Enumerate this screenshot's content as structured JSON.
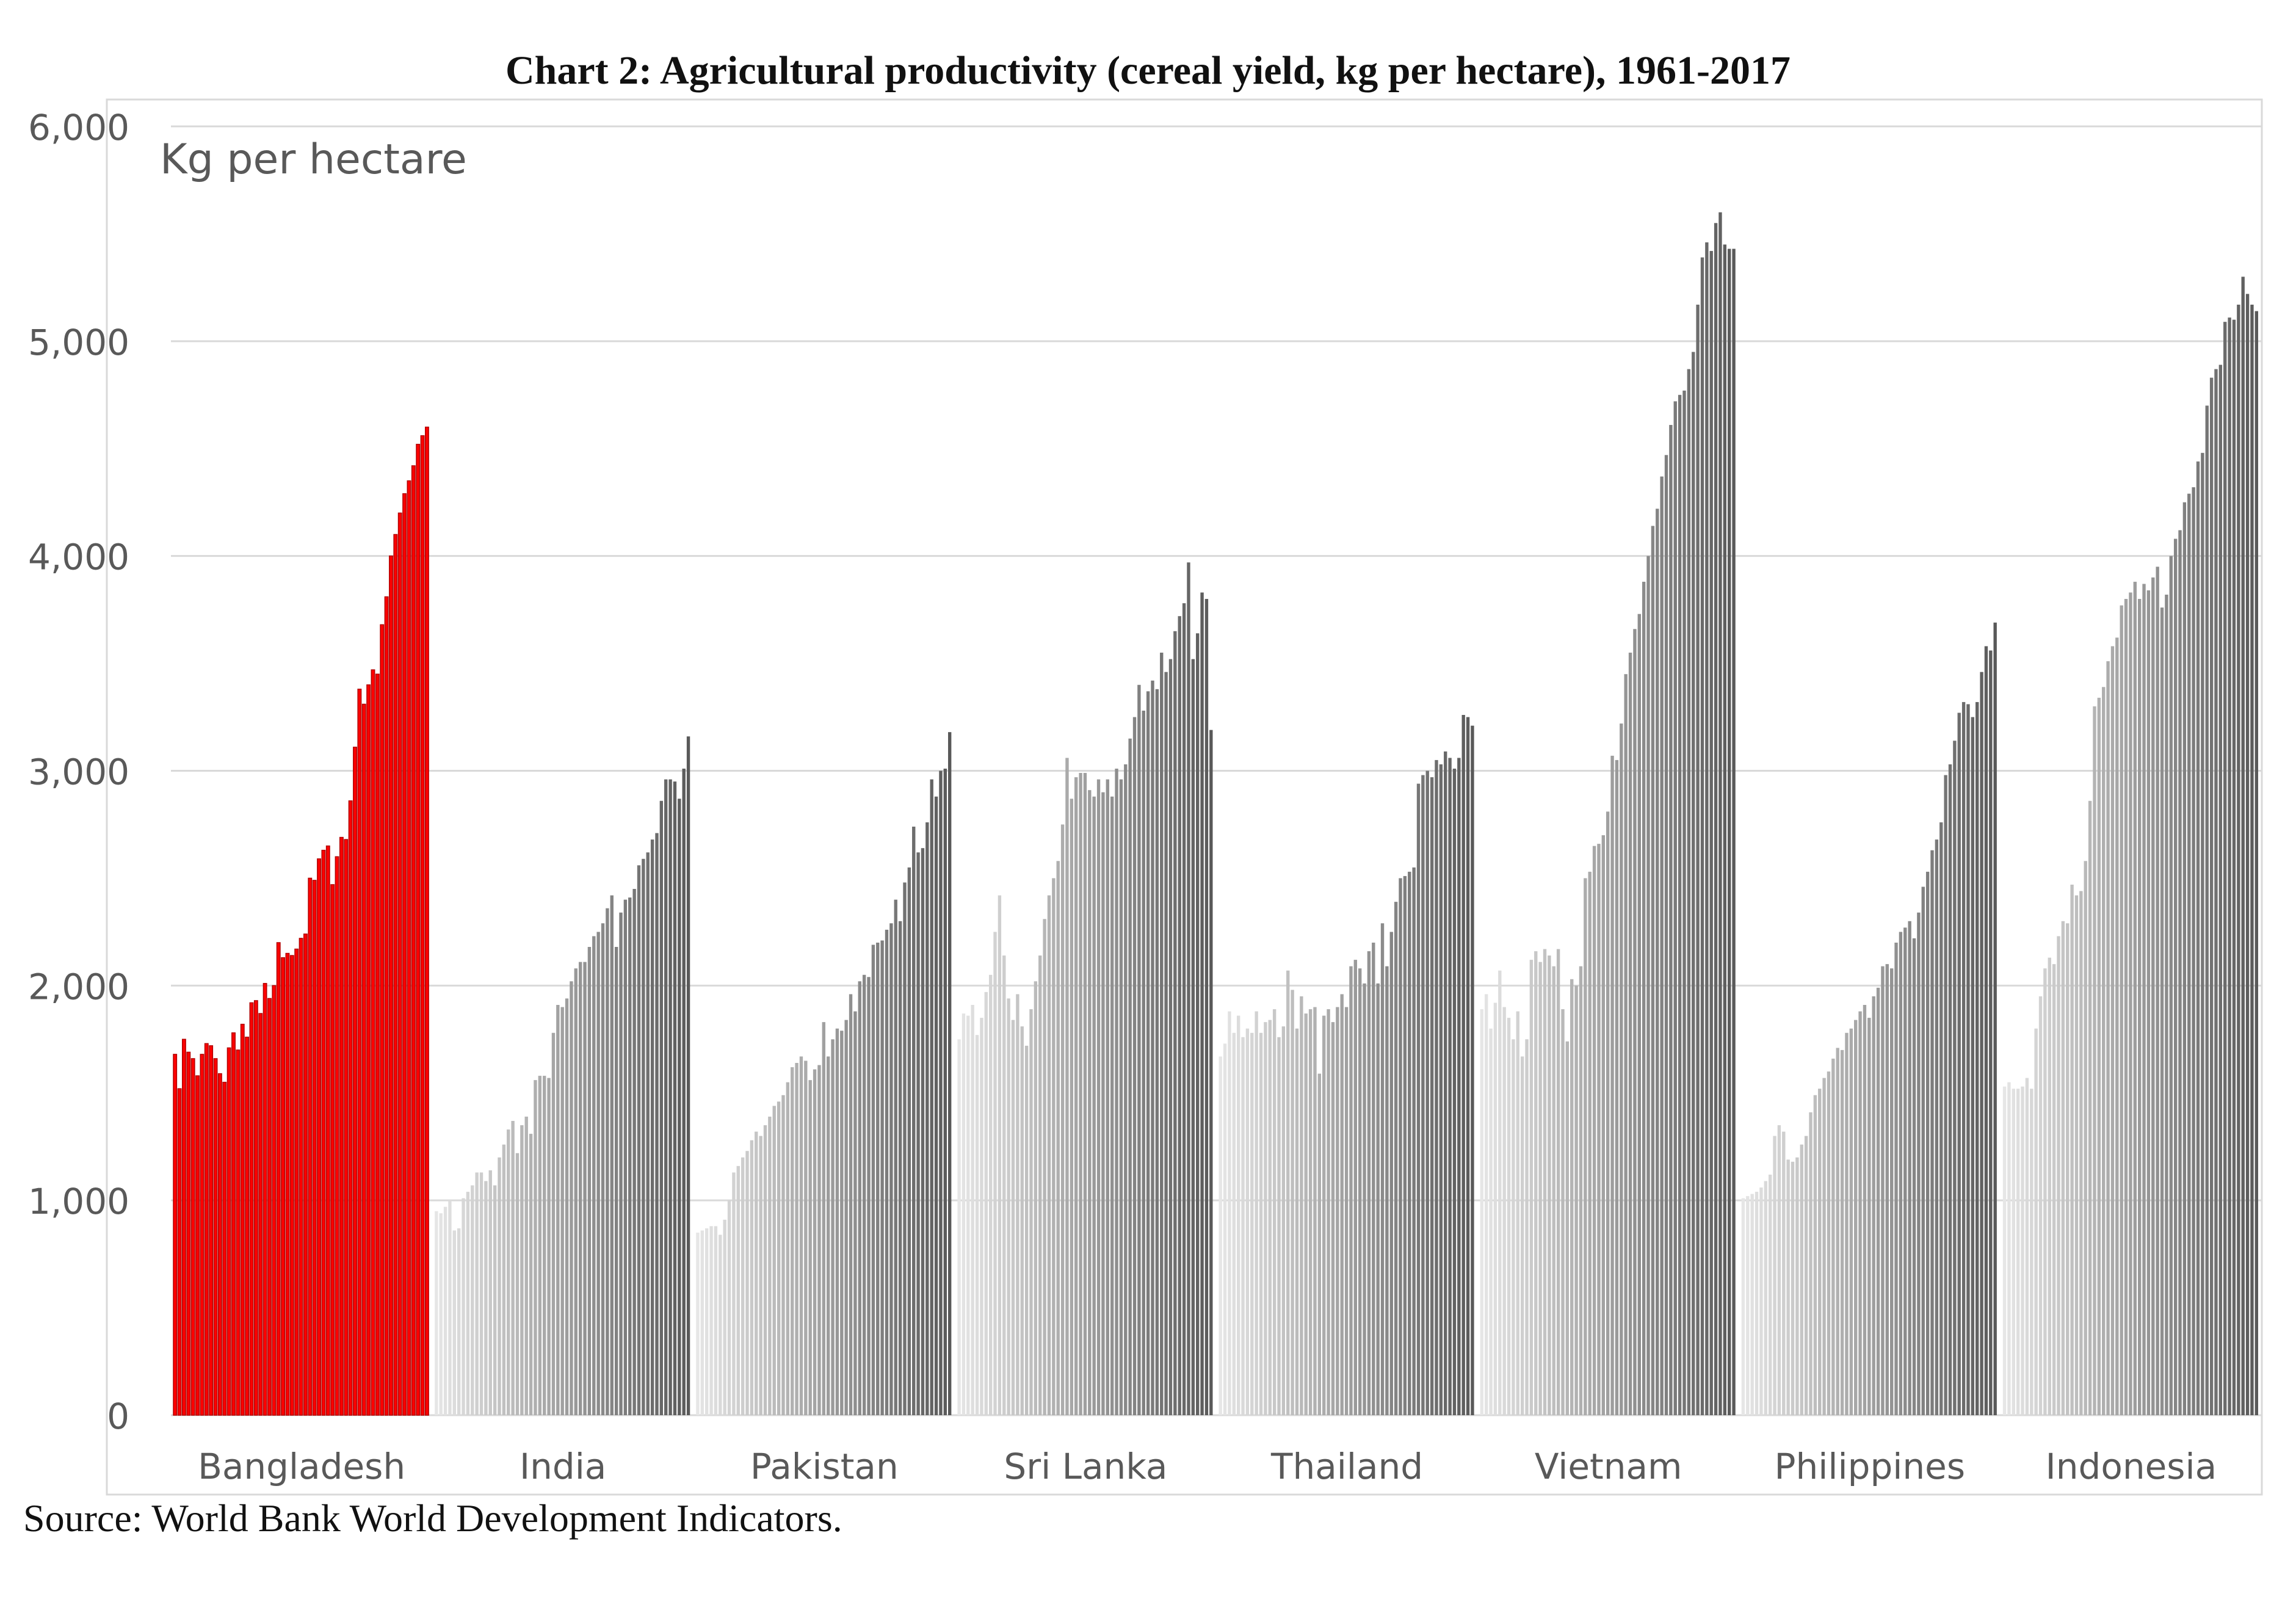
{
  "title": "Chart 2: Agricultural productivity (cereal yield, kg per hectare), 1961-2017",
  "source": "Source: World Bank World Development Indicators.",
  "chart_data": {
    "type": "bar",
    "title": "Chart 2: Agricultural productivity (cereal yield, kg per hectare), 1961-2017",
    "unit_label": "Kg per hectare",
    "ylim": [
      0,
      6000
    ],
    "y_ticks": [
      "0",
      "1,000",
      "2,000",
      "3,000",
      "4,000",
      "5,000",
      "6,000"
    ],
    "y_tick_values": [
      0,
      1000,
      2000,
      3000,
      4000,
      5000,
      6000
    ],
    "grid": "horizontal",
    "years": [
      1961,
      2017
    ],
    "highlight_color": "#ff0000",
    "highlight_edge_color": "#b30000",
    "group_color_start": "#e6e6e6",
    "group_color_end": "#595959",
    "groups": [
      {
        "name": "Bangladesh",
        "highlight": true,
        "values": [
          1680,
          1520,
          1750,
          1690,
          1660,
          1580,
          1680,
          1730,
          1720,
          1660,
          1590,
          1550,
          1710,
          1780,
          1700,
          1820,
          1760,
          1920,
          1930,
          1870,
          2010,
          1940,
          2000,
          2200,
          2130,
          2150,
          2140,
          2170,
          2220,
          2240,
          2500,
          2490,
          2590,
          2630,
          2650,
          2470,
          2600,
          2690,
          2680,
          2860,
          3110,
          3380,
          3310,
          3400,
          3470,
          3450,
          3680,
          3810,
          4000,
          4100,
          4200,
          4290,
          4350,
          4420,
          4520,
          4560,
          4600
        ]
      },
      {
        "name": "India",
        "highlight": false,
        "values": [
          950,
          940,
          970,
          1000,
          860,
          870,
          1010,
          1040,
          1070,
          1130,
          1130,
          1090,
          1140,
          1070,
          1200,
          1260,
          1330,
          1370,
          1220,
          1350,
          1390,
          1310,
          1560,
          1580,
          1580,
          1570,
          1780,
          1910,
          1900,
          1940,
          2020,
          2080,
          2110,
          2110,
          2180,
          2230,
          2250,
          2290,
          2360,
          2420,
          2180,
          2340,
          2400,
          2410,
          2450,
          2560,
          2590,
          2620,
          2680,
          2710,
          2860,
          2960,
          2960,
          2950,
          2870,
          3010,
          3160
        ]
      },
      {
        "name": "Pakistan",
        "highlight": false,
        "values": [
          850,
          860,
          870,
          880,
          880,
          840,
          910,
          1000,
          1130,
          1160,
          1200,
          1230,
          1280,
          1320,
          1300,
          1350,
          1390,
          1440,
          1460,
          1490,
          1550,
          1620,
          1640,
          1670,
          1650,
          1560,
          1610,
          1630,
          1830,
          1670,
          1750,
          1800,
          1790,
          1840,
          1960,
          1880,
          2020,
          2050,
          2040,
          2190,
          2200,
          2210,
          2260,
          2290,
          2400,
          2300,
          2480,
          2550,
          2740,
          2620,
          2640,
          2760,
          2960,
          2880,
          3000,
          3010,
          3180
        ]
      },
      {
        "name": "Sri Lanka",
        "highlight": false,
        "values": [
          1750,
          1870,
          1860,
          1910,
          1770,
          1850,
          1970,
          2050,
          2250,
          2420,
          2140,
          1940,
          1840,
          1960,
          1810,
          1720,
          1890,
          2020,
          2140,
          2310,
          2420,
          2500,
          2580,
          2750,
          3060,
          2870,
          2970,
          2990,
          2990,
          2910,
          2880,
          2960,
          2900,
          2960,
          2880,
          3010,
          2960,
          3030,
          3150,
          3250,
          3400,
          3280,
          3370,
          3420,
          3380,
          3550,
          3460,
          3520,
          3650,
          3720,
          3780,
          3970,
          3520,
          3640,
          3830,
          3800,
          3190
        ]
      },
      {
        "name": "Thailand",
        "highlight": false,
        "values": [
          1670,
          1730,
          1880,
          1780,
          1860,
          1760,
          1800,
          1780,
          1880,
          1780,
          1830,
          1840,
          1890,
          1760,
          1810,
          2070,
          1980,
          1800,
          1950,
          1870,
          1890,
          1900,
          1590,
          1860,
          1890,
          1830,
          1900,
          1960,
          1900,
          2090,
          2120,
          2080,
          2010,
          2160,
          2200,
          2010,
          2290,
          2090,
          2250,
          2390,
          2500,
          2510,
          2530,
          2550,
          2940,
          2980,
          3000,
          2970,
          3050,
          3030,
          3090,
          3060,
          3010,
          3060,
          3260,
          3250,
          3210
        ]
      },
      {
        "name": "Vietnam",
        "highlight": false,
        "values": [
          1890,
          1960,
          1800,
          1920,
          2070,
          1900,
          1850,
          1750,
          1880,
          1670,
          1750,
          2120,
          2160,
          2110,
          2170,
          2140,
          2090,
          2170,
          1890,
          1740,
          2030,
          2000,
          2090,
          2500,
          2530,
          2650,
          2660,
          2700,
          2810,
          3070,
          3050,
          3220,
          3450,
          3550,
          3660,
          3730,
          3880,
          4000,
          4140,
          4220,
          4370,
          4470,
          4610,
          4720,
          4750,
          4770,
          4870,
          4950,
          5170,
          5390,
          5460,
          5420,
          5550,
          5600,
          5450,
          5430,
          5430
        ]
      },
      {
        "name": "Philippines",
        "highlight": false,
        "values": [
          1010,
          1020,
          1030,
          1040,
          1060,
          1090,
          1120,
          1300,
          1350,
          1320,
          1190,
          1180,
          1200,
          1260,
          1300,
          1410,
          1490,
          1520,
          1570,
          1600,
          1660,
          1710,
          1700,
          1780,
          1800,
          1840,
          1880,
          1910,
          1850,
          1950,
          1990,
          2090,
          2100,
          2080,
          2200,
          2250,
          2270,
          2300,
          2220,
          2340,
          2460,
          2530,
          2630,
          2680,
          2760,
          2980,
          3030,
          3140,
          3270,
          3320,
          3310,
          3250,
          3320,
          3460,
          3580,
          3560,
          3690
        ]
      },
      {
        "name": "Indonesia",
        "highlight": false,
        "values": [
          1530,
          1550,
          1520,
          1520,
          1530,
          1570,
          1520,
          1800,
          1950,
          2080,
          2130,
          2100,
          2230,
          2300,
          2290,
          2470,
          2420,
          2440,
          2580,
          2860,
          3300,
          3340,
          3390,
          3510,
          3580,
          3620,
          3770,
          3800,
          3830,
          3880,
          3800,
          3870,
          3840,
          3900,
          3950,
          3760,
          3820,
          4000,
          4080,
          4120,
          4250,
          4290,
          4320,
          4440,
          4480,
          4700,
          4830,
          4870,
          4890,
          5090,
          5110,
          5100,
          5170,
          5300,
          5220,
          5170,
          5140
        ]
      }
    ]
  }
}
